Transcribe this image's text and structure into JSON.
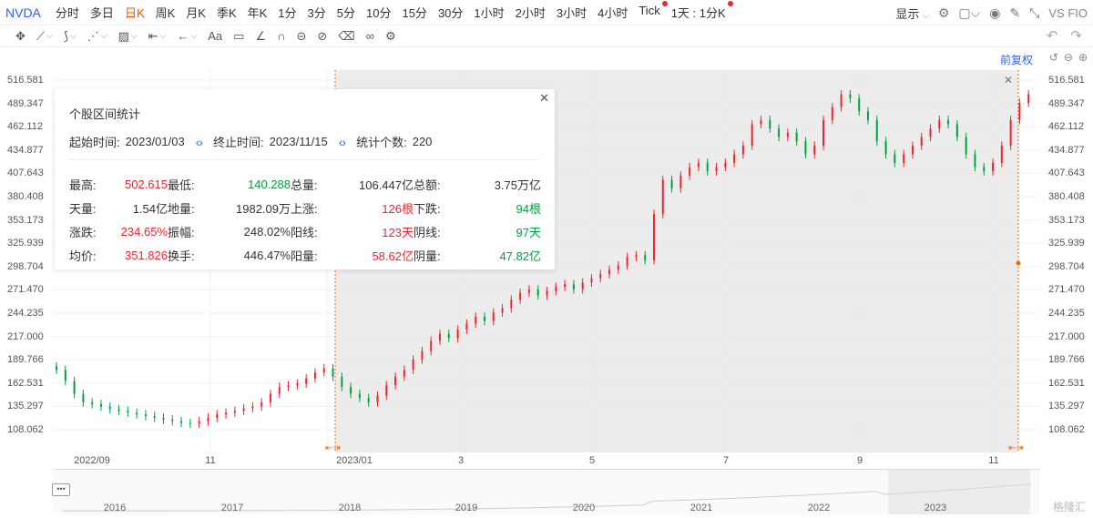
{
  "toolbar": {
    "symbol": "NVDA",
    "periods": [
      "分时",
      "多日",
      "日K",
      "周K",
      "月K",
      "季K",
      "年K",
      "1分",
      "3分",
      "5分",
      "10分",
      "15分",
      "30分",
      "1小时",
      "2小时",
      "3小时",
      "4小时",
      "Tick",
      "1天 : 1分K"
    ],
    "active_period": "日K",
    "display_label": "显示",
    "vs_label": "VS FIO"
  },
  "fuquan_label": "前复权",
  "y_axis_ticks": [
    "516.581",
    "489.347",
    "462.112",
    "434.877",
    "407.643",
    "380.408",
    "353.173",
    "325.939",
    "298.704",
    "271.470",
    "244.235",
    "217.000",
    "189.766",
    "162.531",
    "135.297",
    "108.062"
  ],
  "x_axis_ticks": [
    "2022/09",
    "11",
    "2023/01",
    "3",
    "5",
    "7",
    "9",
    "11"
  ],
  "navigator_years": [
    "2016",
    "2017",
    "2018",
    "2019",
    "2020",
    "2021",
    "2022",
    "2023"
  ],
  "watermark": "格隆汇",
  "stats": {
    "title": "个股区间统计",
    "start_label": "起始时间:",
    "start_value": "2023/01/03",
    "end_label": "终止时间:",
    "end_value": "2023/11/15",
    "count_label": "统计个数:",
    "count_value": "220",
    "rows": [
      [
        [
          "最高:",
          "502.615",
          "red"
        ],
        [
          "最低:",
          "140.288",
          "green"
        ],
        [
          "总量:",
          "106.447亿",
          "dark"
        ],
        [
          "总额:",
          "3.75万亿",
          "dark"
        ]
      ],
      [
        [
          "天量:",
          "1.54亿",
          "dark"
        ],
        [
          "地量:",
          "1982.09万",
          "dark"
        ],
        [
          "上涨:",
          "126根",
          "red"
        ],
        [
          "下跌:",
          "94根",
          "green"
        ]
      ],
      [
        [
          "涨跌:",
          "234.65%",
          "red"
        ],
        [
          "振幅:",
          "248.02%",
          "dark"
        ],
        [
          "阳线:",
          "123天",
          "red"
        ],
        [
          "阴线:",
          "97天",
          "green"
        ]
      ],
      [
        [
          "均价:",
          "351.826",
          "red"
        ],
        [
          "换手:",
          "446.47%",
          "dark"
        ],
        [
          "阳量:",
          "58.62亿",
          "red"
        ],
        [
          "阴量:",
          "47.82亿",
          "green"
        ]
      ]
    ]
  },
  "colors": {
    "up": "#f5222d",
    "down": "#00a23f",
    "accent": "#2962ff",
    "selection_edge": "#ff6600"
  },
  "chart_data": {
    "type": "candlestick",
    "x_range": [
      "2022/08",
      "2023/11"
    ],
    "ylim": [
      108.062,
      516.581
    ],
    "selected_range": [
      "2023/01/03",
      "2023/11/15"
    ],
    "series": [
      {
        "values": [
          178,
          165,
          150,
          140,
          138,
          135,
          132,
          130,
          128,
          126,
          124,
          122,
          120,
          118,
          116,
          115,
          118,
          122,
          126,
          128,
          130,
          133,
          135,
          140,
          150,
          158,
          160,
          162,
          168,
          175,
          180,
          170,
          158,
          150,
          145,
          140,
          148,
          160,
          170,
          178,
          190,
          200,
          212,
          220,
          215,
          225,
          232,
          240,
          235,
          245,
          250,
          260,
          268,
          272,
          265,
          270,
          275,
          278,
          272,
          280,
          285,
          290,
          295,
          300,
          310,
          312,
          306,
          360,
          400,
          390,
          405,
          415,
          420,
          410,
          415,
          420,
          430,
          440,
          465,
          470,
          460,
          450,
          455,
          445,
          430,
          440,
          470,
          485,
          500,
          495,
          480,
          470,
          445,
          430,
          420,
          430,
          440,
          450,
          460,
          470,
          465,
          450,
          430,
          415,
          410,
          420,
          440,
          470,
          490,
          500
        ]
      }
    ]
  }
}
